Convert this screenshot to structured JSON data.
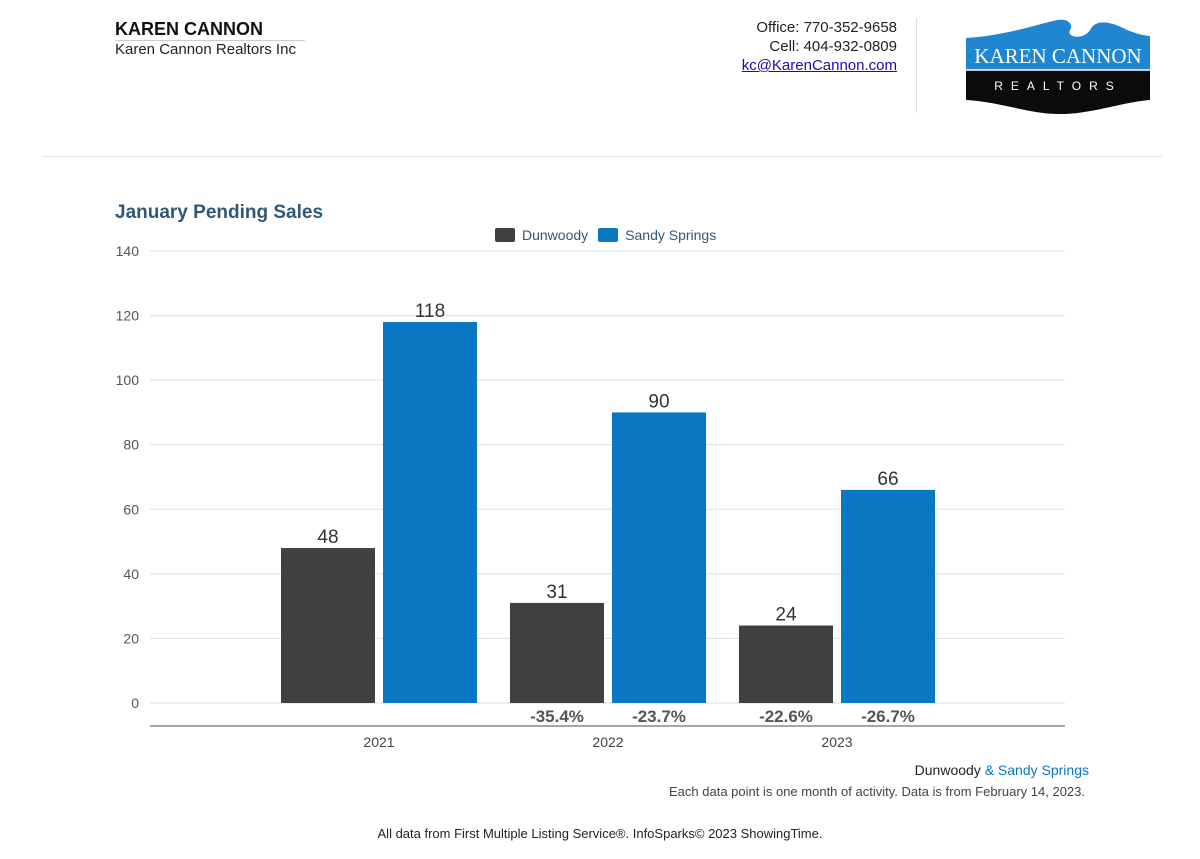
{
  "header": {
    "agent_name": "KAREN CANNON",
    "company": "Karen Cannon Realtors Inc",
    "office": "Office: 770-352-9658",
    "cell": "Cell: 404-932-0809",
    "email": "kc@KarenCannon.com",
    "logo": {
      "line1": "KAREN CANNON",
      "line2": "REALTORS"
    }
  },
  "colors": {
    "dunwoody": "#404040",
    "sandy_springs": "#0a77c2",
    "title": "#2f5878"
  },
  "chart_data": {
    "type": "bar",
    "title": "January Pending Sales",
    "categories": [
      "2021",
      "2022",
      "2023"
    ],
    "series": [
      {
        "name": "Dunwoody",
        "values": [
          48,
          31,
          24
        ],
        "changes": [
          "",
          "-35.4%",
          "-22.6%"
        ]
      },
      {
        "name": "Sandy Springs",
        "values": [
          118,
          90,
          66
        ],
        "changes": [
          "",
          "-23.7%",
          "-26.7%"
        ]
      }
    ],
    "ylim": [
      0,
      140
    ],
    "yticks": [
      0,
      20,
      40,
      60,
      80,
      100,
      120,
      140
    ],
    "grid": true,
    "legend": "top-center"
  },
  "footer": {
    "series_a": "Dunwoody",
    "series_b": "& Sandy Springs",
    "note": "Each data point is one month of activity. Data is from February 14, 2023.",
    "source": "All data from First Multiple Listing Service®. InfoSparks© 2023 ShowingTime."
  }
}
